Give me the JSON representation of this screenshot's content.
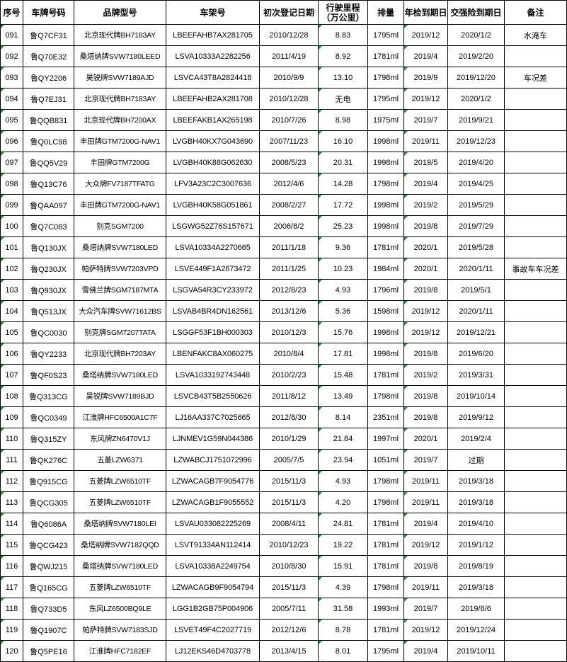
{
  "table": {
    "header": [
      "序号",
      "车牌号码",
      "品牌型号",
      "车架号",
      "初次登记日期",
      "行驶里程（万公里）",
      "排量",
      "年检到期日",
      "交强险到期日",
      "备注"
    ],
    "rows": [
      [
        "091",
        "鲁Q7CF31",
        "北京现代牌BH7183AY",
        "LBEEFAHB7AX281705",
        "2010/12/28",
        "8.83",
        "1795ml",
        "2019/12",
        "2020/1/2",
        "水淹车"
      ],
      [
        "092",
        "鲁Q70E32",
        "桑塔纳牌SVW7180LEED",
        "LSVA10333A2282256",
        "2011/4/19",
        "8.92",
        "1781ml",
        "2019/4",
        "2019/2/20",
        null
      ],
      [
        "093",
        "鲁QY2206",
        "昊锐牌SVW7189AJD",
        "LSVCA43T8A2824418",
        "2010/9/9",
        "13.10",
        "1798ml",
        "2019/9",
        "2019/12/20",
        "车况差"
      ],
      [
        "094",
        "鲁Q7EJ31",
        "北京现代牌BH7183AY",
        "LBEEFAHB2AX281708",
        "2010/12/28",
        "无电",
        "1795ml",
        "2019/12",
        "2020/1/2",
        null
      ],
      [
        "095",
        "鲁QQB831",
        "北京现代牌BH7200AX",
        "LBEEFAKB1AX265198",
        "2010/7/26",
        "8.98",
        "1975ml",
        "2019/7",
        "2019/9/21",
        null
      ],
      [
        "096",
        "鲁Q0LC98",
        "丰田牌GTM7200G-NAV1",
        "LVGBH40KX7G043690",
        "2007/11/23",
        "16.10",
        "1998ml",
        "2019/11",
        "2019/12/23",
        null
      ],
      [
        "097",
        "鲁QQ5V29",
        "丰田牌GTM7200G",
        "LVGBH40K88G062630",
        "2008/5/23",
        "20.31",
        "1998ml",
        "2019/5",
        "2019/4/20",
        null
      ],
      [
        "098",
        "鲁Q13C76",
        "大众牌FV7187TFATG",
        "LFV3A23C2C3007636",
        "2012/4/6",
        "14.28",
        "1798ml",
        "2019/4",
        "2019/4/25",
        null
      ],
      [
        "099",
        "鲁QAA097",
        "丰田牌GTM7200G-NAV1",
        "LVGBH40K58G051861",
        "2008/2/27",
        "17.72",
        "1998ml",
        "2019/2",
        "2019/5/29",
        null
      ],
      [
        "100",
        "鲁Q7C083",
        "别克SGM7200",
        "LSGWG52Z76S157671",
        "2006/8/2",
        "25.23",
        "1998ml",
        "2019/8",
        "2019/7/29",
        null
      ],
      [
        "101",
        "鲁Q130JX",
        "桑塔纳牌SVW7180LED",
        "LSVA10334A2270665",
        "2011/1/18",
        "9.36",
        "1781ml",
        "2020/1",
        "2019/5/28",
        null
      ],
      [
        "102",
        "鲁Q230JX",
        "帕萨特牌SVW7203VPD",
        "LSVE449F1A2673472",
        "2011/1/25",
        "10.23",
        "1984ml",
        "2020/1",
        "2020/1/11",
        "事故车车况差"
      ],
      [
        "103",
        "鲁Q930JX",
        "雪佛兰牌SGM7187MTA",
        "LSGVA54R3CY233972",
        "2012/8/23",
        "4.93",
        "1796ml",
        "2019/8",
        "2019/5/1",
        null
      ],
      [
        "104",
        "鲁Q513JX",
        "大众汽车牌SVW71612BS",
        "LSVAB4BR4DN162561",
        "2013/12/6",
        "5.36",
        "1598ml",
        "2019/12",
        "2020/1/11",
        null
      ],
      [
        "105",
        "鲁QC0030",
        "别克牌SGM7207TATA",
        "LSGGF53F1BH000303",
        "2010/12/3",
        "15.76",
        "1998ml",
        "2019/12",
        "2019/12/21",
        null
      ],
      [
        "106",
        "鲁QY2233",
        "北京现代牌BH7203AY",
        "LBENFAKC8AX060275",
        "2010/8/4",
        "17.81",
        "1998ml",
        "2019/8",
        "2019/6/20",
        null
      ],
      [
        "107",
        "鲁QF0S23",
        "桑塔纳牌SVW7180LED",
        "LSVA1033192743448",
        "2010/2/23",
        "15.48",
        "1781ml",
        "2019/2",
        "2019/3/31",
        null
      ],
      [
        "108",
        "鲁Q313CG",
        "昊锐牌SVW7189BJD",
        "LSVCB43T5B2550626",
        "2011/8/12",
        "13.49",
        "1798ml",
        "2019/8",
        "2019/10/14",
        null
      ],
      [
        "109",
        "鲁QC0349",
        "江淮牌HFC6500A1C7F",
        "LJ16AA337C7025665",
        "2012/8/30",
        "8.14",
        "2351ml",
        "2019/8",
        "2019/9/12",
        null
      ],
      [
        "110",
        "鲁Q315ZY",
        "东风牌ZN6470V1J",
        "LJNMEV1G59N044386",
        "2010/1/29",
        "21.84",
        "1997ml",
        "2020/1",
        "2019/2/4",
        null
      ],
      [
        "111",
        "鲁QK276C",
        "五菱LZW6371",
        "LZWABCJ1751072996",
        "2005/7/5",
        "23.94",
        "1051ml",
        "2019/7",
        "过期",
        null
      ],
      [
        "112",
        "鲁Q915CG",
        "五菱牌LZW6510TF",
        "LZWACAGB7F9054776",
        "2015/11/3",
        "4.93",
        "1798ml",
        "2019/11",
        "2019/3/18",
        null
      ],
      [
        "113",
        "鲁QCG305",
        "五菱牌LZW6510TF",
        "LZWACAGB1F9055552",
        "2015/11/3",
        "4.20",
        "1798ml",
        "2019/11",
        "2019/3/18",
        null
      ],
      [
        "114",
        "鲁Q6086A",
        "桑塔纳牌SVW7180LEI",
        "LSVAU033082225269",
        "2008/4/11",
        "24.81",
        "1781ml",
        "2019/4",
        "2019/4/10",
        null
      ],
      [
        "115",
        "鲁QCG423",
        "桑塔纳牌SVW7182QQD",
        "LSVT91334AN112414",
        "2010/12/23",
        "19.22",
        "1781ml",
        "2019/12",
        "2019/1/12",
        null
      ],
      [
        "116",
        "鲁QWJ215",
        "桑塔纳牌SVW7180LED",
        "LSVA10338A2249754",
        "2010/8/30",
        "15.91",
        "1781ml",
        "2019/8",
        "2019/8/19",
        null
      ],
      [
        "117",
        "鲁Q165CG",
        "五菱牌LZW6510TF",
        "LZWACAGB9F9054794",
        "2015/11/3",
        "4.39",
        "1798ml",
        "2019/11",
        "2019/3/18",
        null
      ],
      [
        "118",
        "鲁Q733D5",
        "东风LZ6500BQ9LE",
        "LGG1B2GB75P004906",
        "2005/7/11",
        "31.58",
        "1993ml",
        "2019/7",
        "2019/6/6",
        null
      ],
      [
        "119",
        "鲁Q1907C",
        "帕萨特牌SVW7183SJD",
        "LSVET49F4C2027719",
        "2012/12/6",
        "8.78",
        "1781ml",
        "2019/12",
        "2019/12/24",
        null
      ],
      [
        "120",
        "鲁Q5PE16",
        "江淮牌HFC7182EF",
        "LJ12EKS46D4703778",
        "2013/4/15",
        "8.01",
        "1795ml",
        "2019/4",
        "2019/10/11",
        null
      ]
    ]
  }
}
